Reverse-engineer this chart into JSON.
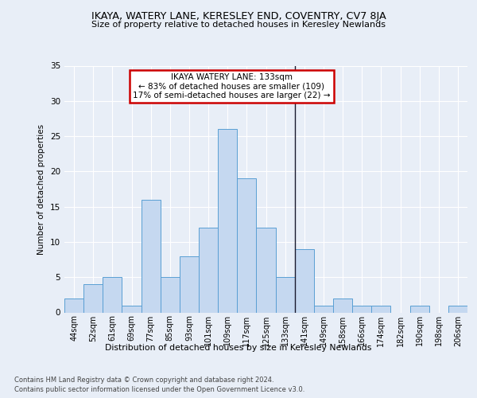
{
  "title": "IKAYA, WATERY LANE, KERESLEY END, COVENTRY, CV7 8JA",
  "subtitle": "Size of property relative to detached houses in Keresley Newlands",
  "xlabel_bottom": "Distribution of detached houses by size in Keresley Newlands",
  "ylabel": "Number of detached properties",
  "categories": [
    "44sqm",
    "52sqm",
    "61sqm",
    "69sqm",
    "77sqm",
    "85sqm",
    "93sqm",
    "101sqm",
    "109sqm",
    "117sqm",
    "125sqm",
    "133sqm",
    "141sqm",
    "149sqm",
    "158sqm",
    "166sqm",
    "174sqm",
    "182sqm",
    "190sqm",
    "198sqm",
    "206sqm"
  ],
  "values": [
    2,
    4,
    5,
    1,
    16,
    5,
    8,
    12,
    26,
    19,
    12,
    5,
    9,
    1,
    2,
    1,
    1,
    0,
    1,
    0,
    1
  ],
  "bar_color": "#c5d8f0",
  "bar_edge_color": "#5a9fd4",
  "vline_color": "#1a1a2e",
  "annotation_title": "IKAYA WATERY LANE: 133sqm",
  "annotation_line1": "← 83% of detached houses are smaller (109)",
  "annotation_line2": "17% of semi-detached houses are larger (22) →",
  "annotation_box_color": "#ffffff",
  "annotation_box_edge": "#cc0000",
  "ylim": [
    0,
    35
  ],
  "yticks": [
    0,
    5,
    10,
    15,
    20,
    25,
    30,
    35
  ],
  "footnote1": "Contains HM Land Registry data © Crown copyright and database right 2024.",
  "footnote2": "Contains public sector information licensed under the Open Government Licence v3.0.",
  "bg_color": "#e8eef7",
  "plot_bg_color": "#e8eef7"
}
